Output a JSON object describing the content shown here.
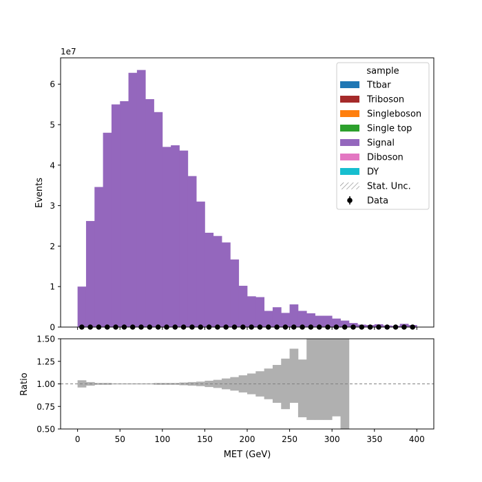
{
  "chart_data": {
    "type": "bar",
    "main": {
      "ylabel": "Events",
      "y_multiplier": "1e7",
      "ylim": [
        0,
        66500000
      ],
      "yticks": [
        0,
        10000000,
        20000000,
        30000000,
        40000000,
        50000000,
        60000000
      ],
      "ytick_labels": [
        "0",
        "1",
        "2",
        "3",
        "4",
        "5",
        "6"
      ]
    },
    "ratio": {
      "ylabel": "Ratio",
      "ylim": [
        0.5,
        1.5
      ],
      "yticks": [
        0.5,
        0.75,
        1.0,
        1.25,
        1.5
      ],
      "ytick_labels": [
        "0.50",
        "0.75",
        "1.00",
        "1.25",
        "1.50"
      ],
      "reference_line": 1.0
    },
    "xlabel": "MET (GeV)",
    "xlim": [
      -20,
      420
    ],
    "xticks": [
      0,
      50,
      100,
      150,
      200,
      250,
      300,
      350,
      400
    ],
    "xtick_labels": [
      "0",
      "50",
      "100",
      "150",
      "200",
      "250",
      "300",
      "350",
      "400"
    ],
    "bin_width": 10,
    "bin_edges": [
      0,
      10,
      20,
      30,
      40,
      50,
      60,
      70,
      80,
      90,
      100,
      110,
      120,
      130,
      140,
      150,
      160,
      170,
      180,
      190,
      200,
      210,
      220,
      230,
      240,
      250,
      260,
      270,
      280,
      290,
      300,
      310,
      320,
      330,
      340,
      350,
      360,
      370,
      380,
      390,
      400
    ],
    "series": [
      {
        "name": "Ttbar",
        "color": "#1f77b4",
        "values": [
          0,
          0,
          0,
          0,
          0,
          0,
          0,
          0,
          0,
          0,
          0,
          0,
          0,
          0,
          0,
          0,
          0,
          0,
          0,
          0,
          0,
          0,
          0,
          0,
          0,
          0,
          0,
          0,
          0,
          0,
          0,
          0,
          0,
          0,
          0,
          0,
          0,
          0,
          0,
          0
        ]
      },
      {
        "name": "Triboson",
        "color": "#a52a2a",
        "values": [
          0,
          0,
          0,
          0,
          0,
          0,
          0,
          0,
          0,
          0,
          0,
          0,
          0,
          0,
          0,
          0,
          0,
          0,
          0,
          0,
          0,
          0,
          0,
          0,
          0,
          0,
          0,
          0,
          0,
          0,
          0,
          0,
          0,
          0,
          0,
          0,
          0,
          0,
          0,
          0
        ]
      },
      {
        "name": "Singleboson",
        "color": "#ff7f0e",
        "values": [
          0,
          0,
          0,
          0,
          0,
          0,
          0,
          0,
          0,
          0,
          0,
          0,
          0,
          0,
          0,
          0,
          0,
          0,
          0,
          0,
          0,
          0,
          0,
          0,
          0,
          0,
          0,
          0,
          0,
          0,
          0,
          0,
          0,
          0,
          0,
          0,
          0,
          0,
          0,
          0
        ]
      },
      {
        "name": "Single top",
        "color": "#2ca02c",
        "values": [
          0,
          0,
          0,
          0,
          0,
          0,
          0,
          0,
          0,
          0,
          0,
          0,
          0,
          0,
          0,
          0,
          0,
          0,
          0,
          0,
          0,
          0,
          0,
          0,
          0,
          0,
          0,
          0,
          0,
          0,
          0,
          0,
          0,
          0,
          0,
          0,
          0,
          0,
          0,
          0
        ]
      },
      {
        "name": "Signal",
        "color": "#9467bd",
        "values": [
          10000000,
          26200000,
          34600000,
          48000000,
          55000000,
          55800000,
          62800000,
          63500000,
          56300000,
          53100000,
          44500000,
          44900000,
          43600000,
          37300000,
          31000000,
          23300000,
          22500000,
          20900000,
          16700000,
          10200000,
          7600000,
          7400000,
          4000000,
          4900000,
          3500000,
          5600000,
          4000000,
          3400000,
          2800000,
          2800000,
          2100000,
          1600000,
          1000000,
          600000,
          500000,
          700000,
          400000,
          300000,
          800000,
          500000
        ]
      },
      {
        "name": "Diboson",
        "color": "#e377c2",
        "values": [
          0,
          0,
          0,
          0,
          0,
          0,
          0,
          0,
          0,
          0,
          0,
          0,
          0,
          0,
          0,
          0,
          0,
          0,
          0,
          0,
          0,
          0,
          0,
          0,
          0,
          0,
          0,
          0,
          0,
          0,
          0,
          0,
          0,
          0,
          0,
          0,
          0,
          0,
          0,
          0
        ]
      },
      {
        "name": "DY",
        "color": "#17becf",
        "values": [
          0,
          0,
          0,
          0,
          0,
          0,
          0,
          0,
          0,
          0,
          0,
          0,
          0,
          0,
          0,
          0,
          0,
          0,
          0,
          0,
          0,
          0,
          0,
          0,
          0,
          0,
          0,
          0,
          0,
          0,
          0,
          0,
          0,
          0,
          0,
          0,
          0,
          0,
          0,
          0
        ]
      }
    ],
    "data_points": {
      "name": "Data",
      "x": [
        5,
        15,
        25,
        35,
        45,
        55,
        65,
        75,
        85,
        95,
        105,
        115,
        125,
        135,
        145,
        155,
        165,
        175,
        185,
        195,
        205,
        215,
        225,
        235,
        245,
        255,
        265,
        275,
        285,
        295,
        305,
        315,
        325,
        335,
        345,
        355,
        365,
        375,
        385,
        395
      ],
      "y": [
        0,
        0,
        0,
        0,
        0,
        0,
        0,
        0,
        0,
        0,
        0,
        0,
        0,
        0,
        0,
        0,
        0,
        0,
        0,
        0,
        0,
        0,
        0,
        0,
        0,
        0,
        0,
        0,
        0,
        0,
        0,
        0,
        0,
        0,
        0,
        0,
        0,
        0,
        0,
        0
      ]
    },
    "stat_unc_ratio": {
      "lower": [
        0.96,
        0.98,
        0.99,
        0.99,
        0.995,
        0.995,
        0.995,
        0.995,
        0.995,
        0.99,
        0.99,
        0.99,
        0.985,
        0.98,
        0.975,
        0.965,
        0.955,
        0.94,
        0.925,
        0.905,
        0.885,
        0.86,
        0.83,
        0.79,
        0.72,
        0.79,
        0.63,
        0.6,
        0.6,
        0.6,
        0.64,
        0.5,
        1.0,
        1.0,
        1.0,
        1.0,
        1.0,
        1.0,
        1.0,
        1.0
      ],
      "upper": [
        1.04,
        1.02,
        1.01,
        1.01,
        1.005,
        1.005,
        1.005,
        1.005,
        1.005,
        1.01,
        1.01,
        1.01,
        1.015,
        1.02,
        1.025,
        1.035,
        1.045,
        1.06,
        1.075,
        1.095,
        1.115,
        1.14,
        1.17,
        1.21,
        1.28,
        1.39,
        1.27,
        1.5,
        1.5,
        1.5,
        1.5,
        1.5,
        1.0,
        1.0,
        1.0,
        1.0,
        1.0,
        1.0,
        1.0,
        1.0
      ]
    },
    "legend": {
      "title": "sample",
      "placement": "upper right",
      "entries": [
        {
          "label": "Ttbar",
          "kind": "patch",
          "color": "#1f77b4"
        },
        {
          "label": "Triboson",
          "kind": "patch",
          "color": "#a52a2a"
        },
        {
          "label": "Singleboson",
          "kind": "patch",
          "color": "#ff7f0e"
        },
        {
          "label": "Single top",
          "kind": "patch",
          "color": "#2ca02c"
        },
        {
          "label": "Signal",
          "kind": "patch",
          "color": "#9467bd"
        },
        {
          "label": "Diboson",
          "kind": "patch",
          "color": "#e377c2"
        },
        {
          "label": "DY",
          "kind": "patch",
          "color": "#17becf"
        },
        {
          "label": "Stat. Unc.",
          "kind": "hatch",
          "color": "#808080"
        },
        {
          "label": "Data",
          "kind": "marker",
          "color": "#000000"
        }
      ]
    },
    "unc_band_color": "#b0b0b0"
  }
}
